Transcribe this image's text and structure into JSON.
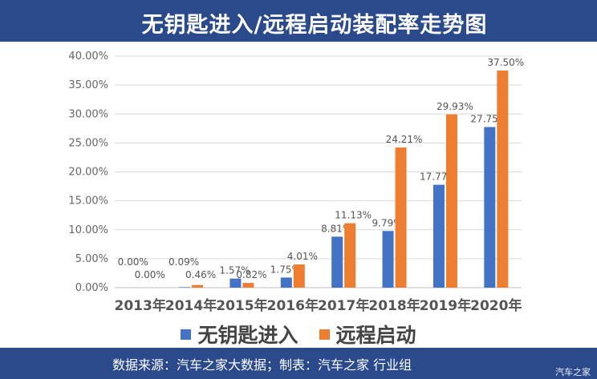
{
  "header": {
    "title": "无钥匙进入/远程启动装配率走势图"
  },
  "footer": {
    "source": "数据来源：汽车之家大数据；制表：汽车之家 行业组",
    "watermark": "汽车之家"
  },
  "colors": {
    "series1": "#4472c4",
    "series2": "#ed7d31",
    "banner": "#2a4a8c"
  },
  "chart_data": {
    "type": "bar",
    "title": "无钥匙进入/远程启动装配率走势图",
    "categories": [
      "2013年",
      "2014年",
      "2015年",
      "2016年",
      "2017年",
      "2018年",
      "2019年",
      "2020年"
    ],
    "series": [
      {
        "name": "无钥匙进入",
        "values": [
          0.0,
          0.09,
          1.57,
          1.75,
          8.81,
          9.79,
          17.77,
          27.75
        ],
        "labels": [
          "0.00%",
          "0.09%",
          "1.57%",
          "1.75%",
          "8.81%",
          "9.79%",
          "17.77%",
          "27.75%"
        ]
      },
      {
        "name": "远程启动",
        "values": [
          0.0,
          0.46,
          0.82,
          4.01,
          11.13,
          24.21,
          29.93,
          37.5
        ],
        "labels": [
          "0.00%",
          "0.46%",
          "0.82%",
          "4.01%",
          "11.13%",
          "24.21%",
          "29.93%",
          "37.50%"
        ]
      }
    ],
    "yticks": [
      "0.00%",
      "5.00%",
      "10.00%",
      "15.00%",
      "20.00%",
      "25.00%",
      "30.00%",
      "35.00%",
      "40.00%"
    ],
    "ylim": [
      0,
      40
    ],
    "xlabel": "",
    "ylabel": "",
    "legend": "bottom"
  }
}
